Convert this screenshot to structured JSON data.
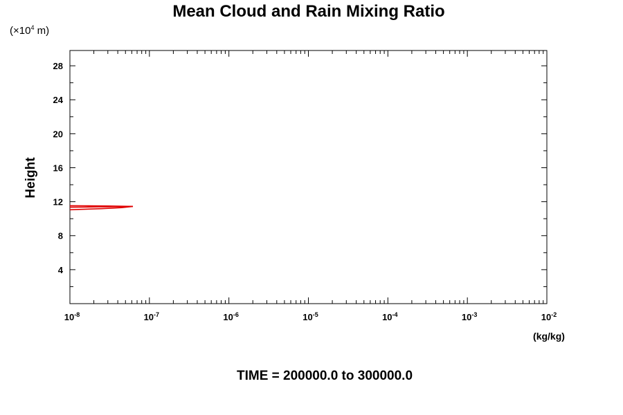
{
  "chart_data": {
    "type": "line",
    "title": "Mean Cloud and Rain Mixing Ratio",
    "y_scale_note": "(×10",
    "y_scale_exp": "4",
    "y_scale_unit": " m)",
    "ylabel": "Height",
    "xlabel": "(kg/kg)",
    "footer": "TIME = 200000.0 to 300000.0",
    "x_scale": "log",
    "xlim": [
      1e-08,
      0.01
    ],
    "ylim": [
      0,
      29.8
    ],
    "x_ticks": [
      {
        "base": "10",
        "exp": "-8",
        "value": 1e-08
      },
      {
        "base": "10",
        "exp": "-7",
        "value": 1e-07
      },
      {
        "base": "10",
        "exp": "-6",
        "value": 1e-06
      },
      {
        "base": "10",
        "exp": "-5",
        "value": 1e-05
      },
      {
        "base": "10",
        "exp": "-4",
        "value": 0.0001
      },
      {
        "base": "10",
        "exp": "-3",
        "value": 0.001
      },
      {
        "base": "10",
        "exp": "-2",
        "value": 0.01
      }
    ],
    "y_ticks": [
      4,
      8,
      12,
      16,
      20,
      24,
      28
    ],
    "series": [
      {
        "color": "#e00000",
        "points": [
          [
            1e-08,
            11.05
          ],
          [
            1.2e-08,
            11.08
          ],
          [
            2.5e-08,
            11.18
          ],
          [
            4.5e-08,
            11.3
          ],
          [
            6.2e-08,
            11.45
          ],
          [
            3e-08,
            11.5
          ],
          [
            1.5e-08,
            11.52
          ],
          [
            1e-08,
            11.53
          ]
        ]
      },
      {
        "color": "#e00000",
        "points": [
          [
            1e-08,
            11.35
          ],
          [
            2e-08,
            11.38
          ],
          [
            4e-08,
            11.42
          ],
          [
            6.2e-08,
            11.45
          ]
        ]
      }
    ]
  }
}
